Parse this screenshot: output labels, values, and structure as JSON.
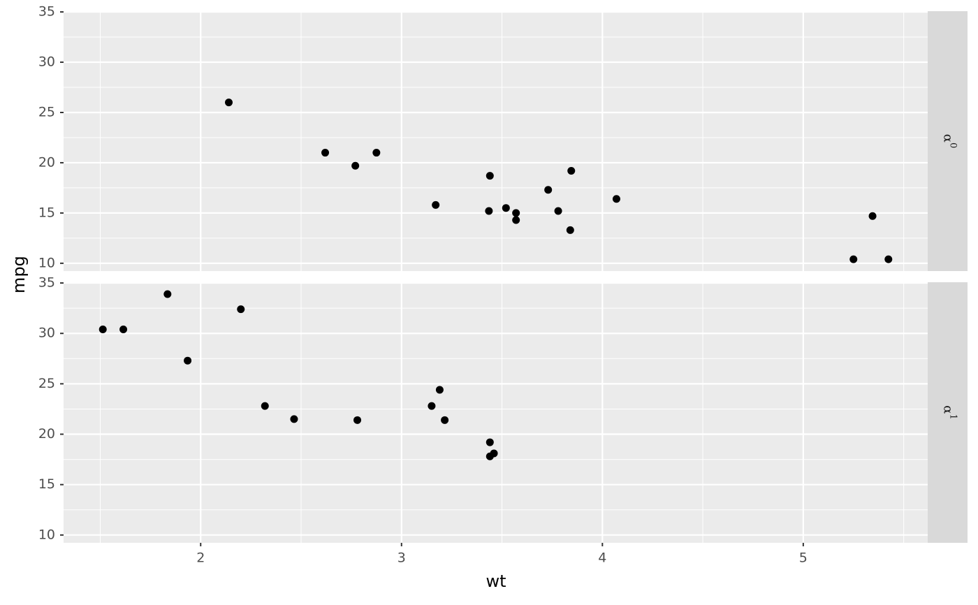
{
  "chart_data": {
    "type": "scatter",
    "x_label": "wt",
    "y_label": "mpg",
    "xlim": [
      1.31745,
      5.61955
    ],
    "ylim": [
      9.225,
      35.075
    ],
    "xticks": [
      2,
      3,
      4,
      5
    ],
    "yticks": [
      10,
      15,
      20,
      25,
      30,
      35
    ],
    "xminor": [
      1.5,
      2.5,
      3.5,
      4.5,
      5.5
    ],
    "yminor": [
      12.5,
      17.5,
      22.5,
      27.5,
      32.5
    ],
    "grid": true,
    "color": "#000000",
    "facets": [
      {
        "strip": {
          "symbol": "α",
          "superscript": "0"
        },
        "x": [
          2.62,
          2.875,
          3.44,
          3.57,
          4.07,
          3.73,
          3.78,
          5.25,
          5.424,
          5.345,
          3.52,
          3.435,
          3.84,
          3.845,
          2.14,
          3.17,
          2.77,
          3.57
        ],
        "y": [
          21,
          21,
          18.7,
          14.3,
          16.4,
          17.3,
          15.2,
          10.4,
          10.4,
          14.7,
          15.5,
          15.2,
          13.3,
          19.2,
          26,
          15.8,
          19.7,
          15
        ]
      },
      {
        "strip": {
          "symbol": "α",
          "superscript": "1"
        },
        "x": [
          2.32,
          3.215,
          3.46,
          3.19,
          3.15,
          3.44,
          3.44,
          2.2,
          1.615,
          1.835,
          2.465,
          1.935,
          1.513,
          2.78
        ],
        "y": [
          22.8,
          21.4,
          18.1,
          24.4,
          22.8,
          19.2,
          17.8,
          32.4,
          30.4,
          33.9,
          21.5,
          27.3,
          30.4,
          21.4
        ]
      }
    ]
  }
}
